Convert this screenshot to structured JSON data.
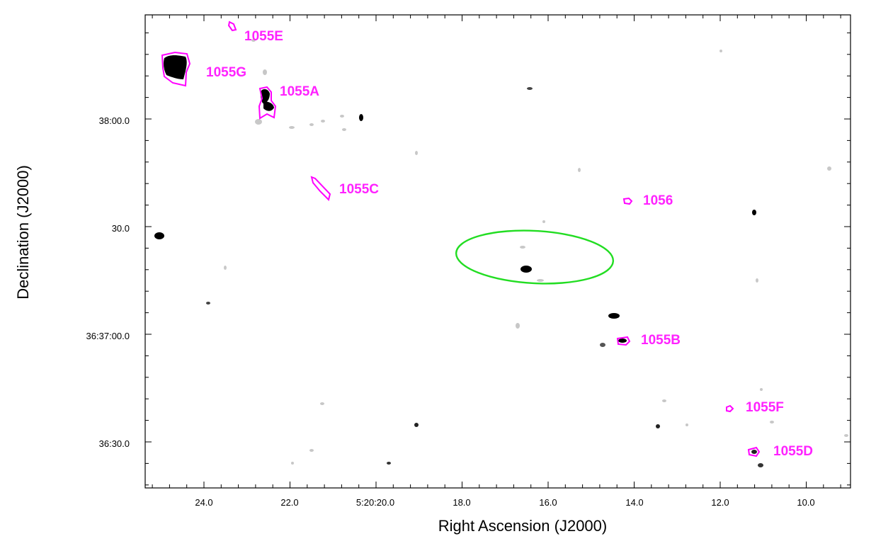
{
  "chart_data": {
    "type": "scatter",
    "xlabel": "Right Ascension (J2000)",
    "ylabel": "Declination (J2000)",
    "x_ticks": [
      {
        "label": "24.0"
      },
      {
        "label": "22.0"
      },
      {
        "label": "5:20:20.0"
      },
      {
        "label": "18.0"
      },
      {
        "label": "16.0"
      },
      {
        "label": "14.0"
      },
      {
        "label": "12.0"
      },
      {
        "label": "10.0"
      }
    ],
    "y_ticks": [
      {
        "label": "38:00.0"
      },
      {
        "label": "30.0"
      },
      {
        "label": "36:37:00.0"
      },
      {
        "label": "36:30.0"
      }
    ],
    "sources": [
      {
        "name": "1055E",
        "ra_sec": 23.3,
        "dec": "36:38:13"
      },
      {
        "name": "1055G",
        "ra_sec": 24.6,
        "dec": "36:38:06"
      },
      {
        "name": "1055A",
        "ra_sec": 22.5,
        "dec": "36:38:04"
      },
      {
        "name": "1055C",
        "ra_sec": 21.3,
        "dec": "36:37:50"
      },
      {
        "name": "1056",
        "ra_sec": 14.1,
        "dec": "36:37:37"
      },
      {
        "name": "1055B",
        "ra_sec": 14.2,
        "dec": "36:36:59"
      },
      {
        "name": "1055F",
        "ra_sec": 11.8,
        "dec": "36:36:41"
      },
      {
        "name": "1055D",
        "ra_sec": 11.2,
        "dec": "36:36:29"
      }
    ],
    "ellipse": {
      "color": "#22dd22"
    },
    "contour_color": "#ff00ff",
    "label_color": "#ff22ff"
  }
}
